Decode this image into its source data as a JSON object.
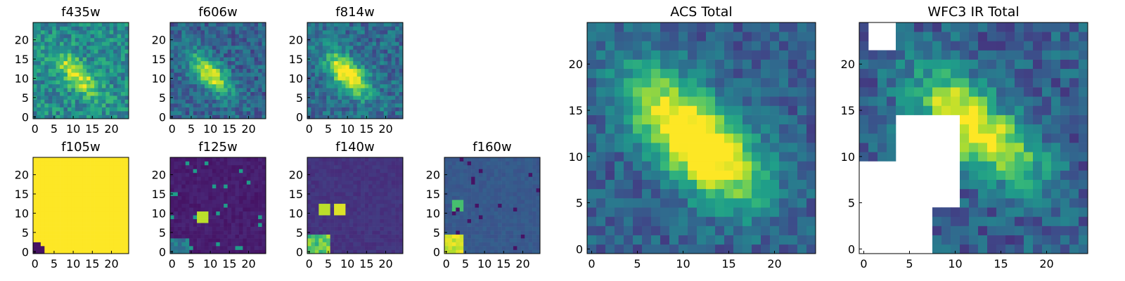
{
  "chart_data": [
    {
      "type": "heatmap",
      "title": "f435w",
      "xticks": [
        "0",
        "5",
        "10",
        "15",
        "20"
      ],
      "yticks": [
        "0",
        "5",
        "10",
        "15",
        "20"
      ],
      "xlim": [
        0,
        25
      ],
      "ylim": [
        0,
        25
      ],
      "colormap": "viridis",
      "pattern": "galaxy-noisy"
    },
    {
      "type": "heatmap",
      "title": "f606w",
      "xticks": [
        "0",
        "5",
        "10",
        "15",
        "20"
      ],
      "yticks": [
        "0",
        "5",
        "10",
        "15",
        "20"
      ],
      "xlim": [
        0,
        25
      ],
      "ylim": [
        0,
        25
      ],
      "colormap": "viridis",
      "pattern": "galaxy"
    },
    {
      "type": "heatmap",
      "title": "f814w",
      "xticks": [
        "0",
        "5",
        "10",
        "15",
        "20"
      ],
      "yticks": [
        "0",
        "5",
        "10",
        "15",
        "20"
      ],
      "xlim": [
        0,
        25
      ],
      "ylim": [
        0,
        25
      ],
      "colormap": "viridis",
      "pattern": "galaxy-bright"
    },
    {
      "type": "heatmap",
      "title": "f105w",
      "xticks": [
        "0",
        "5",
        "10",
        "15",
        "20"
      ],
      "yticks": [
        "0",
        "5",
        "10",
        "15",
        "20"
      ],
      "xlim": [
        0,
        25
      ],
      "ylim": [
        0,
        25
      ],
      "colormap": "viridis",
      "pattern": "saturated"
    },
    {
      "type": "heatmap",
      "title": "f125w",
      "xticks": [
        "0",
        "5",
        "10",
        "15",
        "20"
      ],
      "yticks": [
        "0",
        "5",
        "10",
        "15",
        "20"
      ],
      "xlim": [
        0,
        25
      ],
      "ylim": [
        0,
        25
      ],
      "colormap": "viridis",
      "pattern": "dark-blobs"
    },
    {
      "type": "heatmap",
      "title": "f140w",
      "xticks": [
        "0",
        "5",
        "10",
        "15",
        "20"
      ],
      "yticks": [
        "0",
        "5",
        "10",
        "15",
        "20"
      ],
      "xlim": [
        0,
        25
      ],
      "ylim": [
        0,
        25
      ],
      "colormap": "viridis",
      "pattern": "dark-blobs-2"
    },
    {
      "type": "heatmap",
      "title": "f160w",
      "xticks": [
        "0",
        "5",
        "10",
        "15",
        "20"
      ],
      "yticks": [
        "0",
        "5",
        "10",
        "15",
        "20"
      ],
      "xlim": [
        0,
        25
      ],
      "ylim": [
        0,
        25
      ],
      "colormap": "viridis",
      "pattern": "mid-blobs"
    },
    {
      "type": "heatmap",
      "title": "ACS Total",
      "xticks": [
        "0",
        "5",
        "10",
        "15",
        "20"
      ],
      "yticks": [
        "0",
        "5",
        "10",
        "15",
        "20"
      ],
      "xlim": [
        0,
        25
      ],
      "ylim": [
        0,
        25
      ],
      "colormap": "viridis",
      "pattern": "galaxy-smooth"
    },
    {
      "type": "heatmap",
      "title": "WFC3 IR Total",
      "xticks": [
        "0",
        "5",
        "10",
        "15",
        "20"
      ],
      "yticks": [
        "0",
        "5",
        "10",
        "15",
        "20"
      ],
      "xlim": [
        0,
        25
      ],
      "ylim": [
        0,
        25
      ],
      "colormap": "viridis",
      "pattern": "galaxy-masked"
    }
  ]
}
